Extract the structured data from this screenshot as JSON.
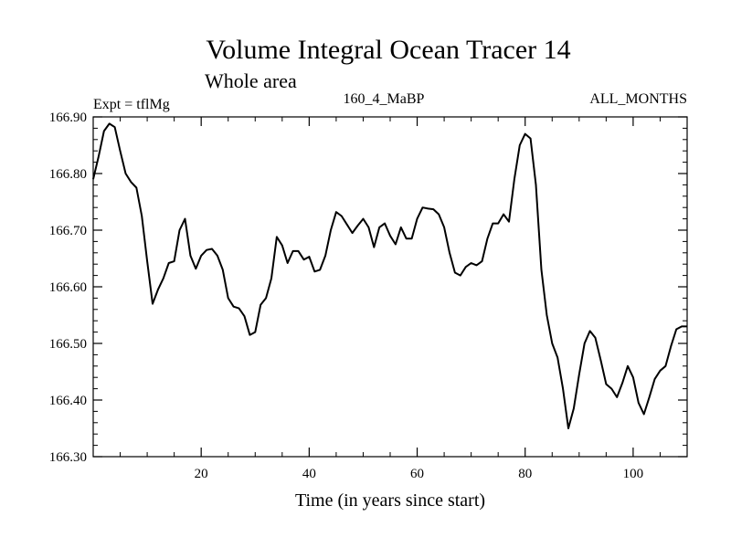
{
  "chart_data": {
    "type": "line",
    "title": "Volume Integral Ocean Tracer 14",
    "subtitle": "Whole area",
    "annotations": {
      "left": "Expt = tflMg",
      "center": "160_4_MaBP",
      "right": "ALL_MONTHS"
    },
    "xlabel": "Time (in years since start)",
    "ylabel": "",
    "xlim": [
      0,
      110
    ],
    "ylim": [
      166.3,
      166.9
    ],
    "xticks": [
      20,
      40,
      60,
      80,
      100
    ],
    "yticks": [
      166.3,
      166.4,
      166.5,
      166.6,
      166.7,
      166.8,
      166.9
    ],
    "ytick_labels": [
      "166.30",
      "166.40",
      "166.50",
      "166.60",
      "166.70",
      "166.80",
      "166.90"
    ],
    "grid": false,
    "series": [
      {
        "x": [
          0,
          1,
          2,
          3,
          4,
          5,
          6,
          7,
          8,
          9,
          10,
          11,
          12,
          13,
          14,
          15,
          16,
          17,
          18,
          19,
          20,
          21,
          22,
          23,
          24,
          25,
          26,
          27,
          28,
          29,
          30,
          31,
          32,
          33,
          34,
          35,
          36,
          37,
          38,
          39,
          40,
          41,
          42,
          43,
          44,
          45,
          46,
          47,
          48,
          49,
          50,
          51,
          52,
          53,
          54,
          55,
          56,
          57,
          58,
          59,
          60,
          61,
          62,
          63,
          64,
          65,
          66,
          67,
          68,
          69,
          70,
          71,
          72,
          73,
          74,
          75,
          76,
          77,
          78,
          79,
          80,
          81,
          82,
          83,
          84,
          85,
          86,
          87,
          88,
          89,
          90,
          91,
          92,
          93,
          94,
          95,
          96,
          97,
          98,
          99,
          100,
          101,
          102,
          103,
          104,
          105,
          106,
          107,
          108,
          109,
          110
        ],
        "values": [
          166.79,
          166.83,
          166.875,
          166.888,
          166.882,
          166.84,
          166.8,
          166.785,
          166.775,
          166.725,
          166.645,
          166.57,
          166.595,
          166.615,
          166.642,
          166.645,
          166.7,
          166.72,
          166.655,
          166.632,
          166.655,
          166.665,
          166.667,
          166.655,
          166.63,
          166.58,
          166.565,
          166.562,
          166.548,
          166.515,
          166.52,
          166.568,
          166.58,
          166.615,
          166.688,
          166.673,
          166.642,
          166.663,
          166.663,
          166.648,
          166.653,
          166.627,
          166.63,
          166.655,
          166.7,
          166.732,
          166.725,
          166.71,
          166.695,
          166.708,
          166.72,
          166.705,
          166.67,
          166.705,
          166.712,
          166.69,
          166.675,
          166.705,
          166.685,
          166.685,
          166.72,
          166.74,
          166.738,
          166.737,
          166.728,
          166.705,
          166.66,
          166.625,
          166.62,
          166.635,
          166.642,
          166.638,
          166.645,
          166.685,
          166.712,
          166.712,
          166.728,
          166.715,
          166.79,
          166.85,
          166.87,
          166.862,
          166.78,
          166.63,
          166.55,
          166.5,
          166.475,
          166.42,
          166.35,
          166.385,
          166.445,
          166.5,
          166.522,
          166.51,
          166.47,
          166.428,
          166.42,
          166.405,
          166.43,
          166.46,
          166.44,
          166.395,
          166.375,
          166.405,
          166.437,
          166.452,
          166.46,
          166.495,
          166.525,
          166.53,
          166.53
        ]
      }
    ]
  }
}
